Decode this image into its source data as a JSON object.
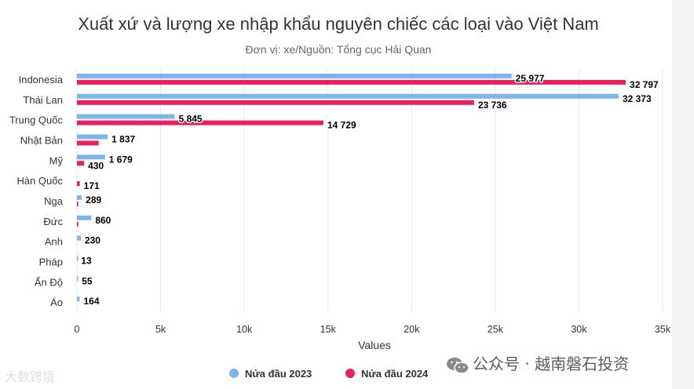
{
  "chart_data": {
    "type": "bar",
    "orientation": "horizontal",
    "title": "Xuất xứ và lượng xe nhập khẩu nguyên chiếc các loại vào Việt Nam",
    "subtitle": "Đơn vị: xe/Nguồn: Tổng cục Hải Quan",
    "xlabel": "Values",
    "ylabel": "",
    "xlim": [
      0,
      35000
    ],
    "xticks": [
      0,
      5000,
      10000,
      15000,
      20000,
      25000,
      30000,
      35000
    ],
    "xtick_labels": [
      "0",
      "5k",
      "10k",
      "15k",
      "20k",
      "25k",
      "30k",
      "35k"
    ],
    "grid": true,
    "legend_position": "bottom",
    "categories": [
      "Indonesia",
      "Thái Lan",
      "Trung Quốc",
      "Nhật Bản",
      "Mỹ",
      "Hàn Quốc",
      "Nga",
      "Đức",
      "Anh",
      "Pháp",
      "Ấn Độ",
      "Áo"
    ],
    "series": [
      {
        "name": "Nửa đầu 2023",
        "color": "#7cb5ec",
        "values": [
          25977,
          32373,
          5845,
          1837,
          1679,
          null,
          289,
          860,
          230,
          13,
          55,
          164
        ],
        "labels": [
          "25 977",
          "32 373",
          "5 845",
          "1 837",
          "1 679",
          "",
          "289",
          "860",
          "230",
          "13",
          "55",
          "164"
        ]
      },
      {
        "name": "Nửa đầu 2024",
        "color": "#e91e63",
        "values": [
          32797,
          23736,
          14729,
          1300,
          430,
          171,
          80,
          80,
          null,
          null,
          null,
          null
        ],
        "labels": [
          "32 797",
          "23 736",
          "14 729",
          "",
          "430",
          "171",
          "",
          "",
          "",
          "",
          "",
          ""
        ]
      }
    ]
  },
  "watermark": {
    "left_text": "大数跨境",
    "right_text": "公众号 · 越南磐石投资",
    "wechat_icon": "wechat-icon"
  }
}
